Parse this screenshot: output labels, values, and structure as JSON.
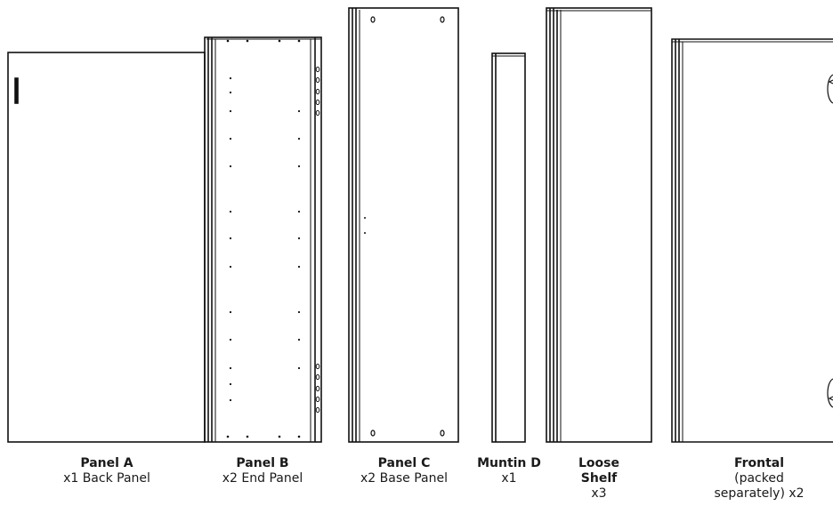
{
  "parts": [
    {
      "id": "panel-a",
      "name": "Panel A",
      "qty": "x1 Back Panel"
    },
    {
      "id": "panel-b",
      "name": "Panel B",
      "qty": "x2 End Panel"
    },
    {
      "id": "panel-c",
      "name": "Panel C",
      "qty": "x2 Base Panel"
    },
    {
      "id": "muntin-d",
      "name": "Muntin D",
      "qty": "x1"
    },
    {
      "id": "loose-shelf",
      "name": "Loose Shelf",
      "qty": "x3"
    },
    {
      "id": "frontal",
      "name": "Frontal",
      "qty": "(packed separately) x2"
    }
  ],
  "colors": {
    "line": "#111111",
    "text": "#1a1a1a",
    "background": "#ffffff"
  }
}
